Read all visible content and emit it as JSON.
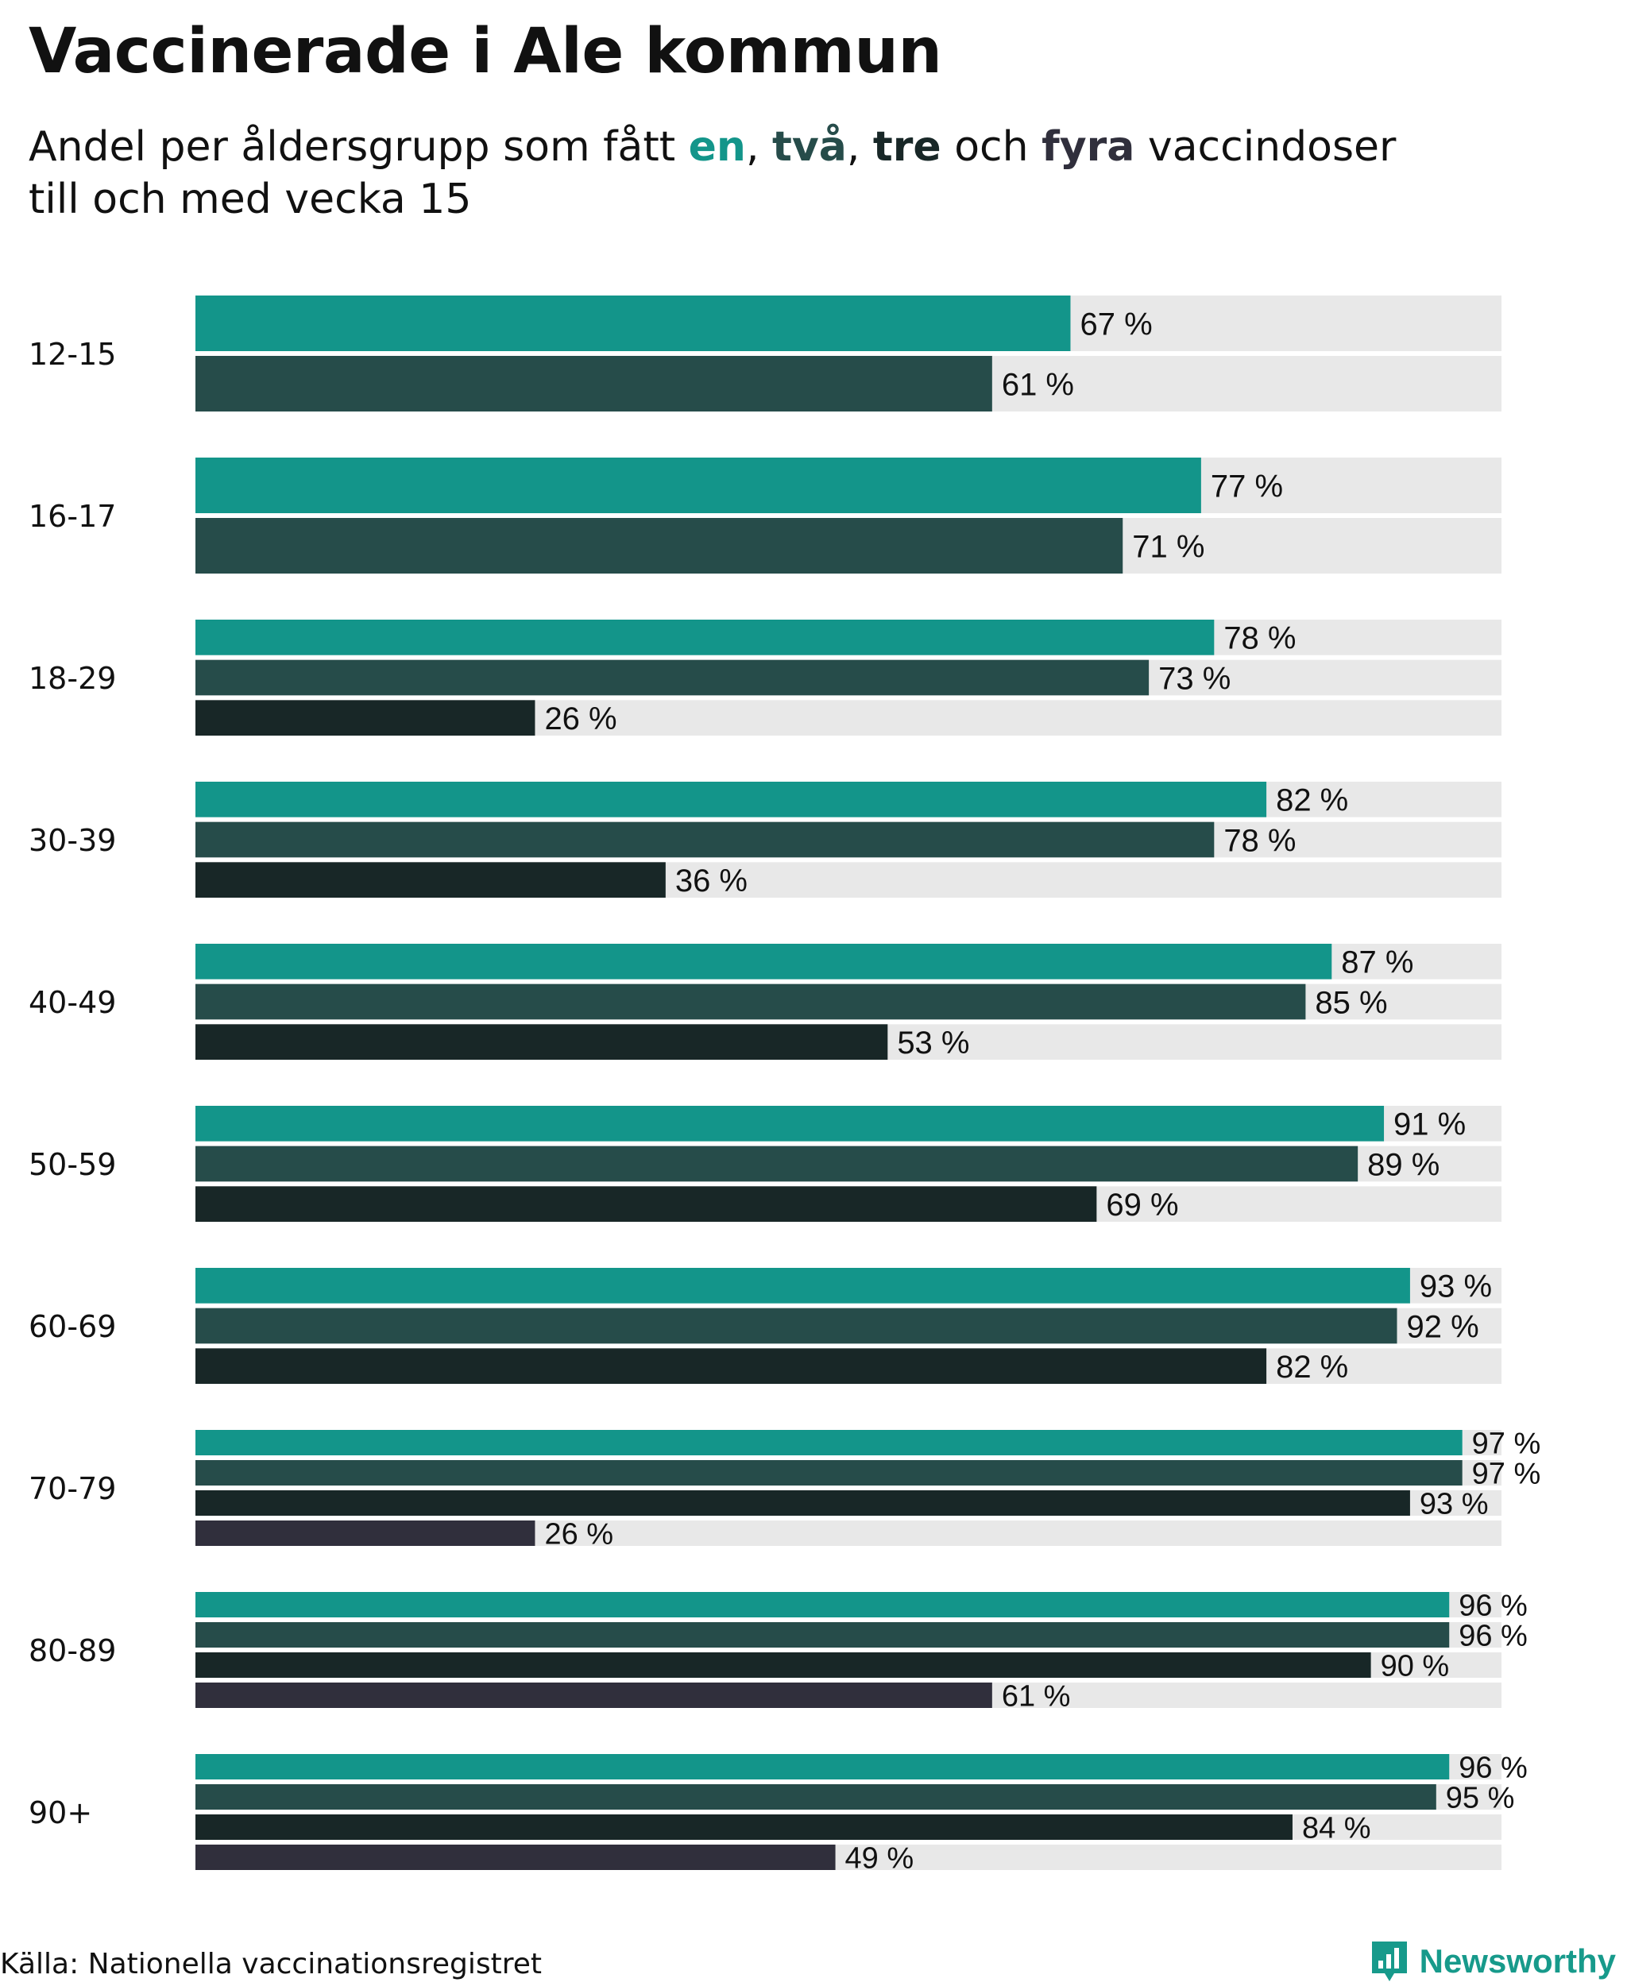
{
  "title": "Vaccinerade i Ale kommun",
  "subtitle": {
    "prefix": "Andel per åldersgrupp som fått ",
    "w1": "en",
    "sep1": ", ",
    "w2": "två",
    "sep2": ", ",
    "w3": "tre",
    "sep3": " och ",
    "w4": "fyra",
    "suffix": " vaccindoser",
    "line2": "till och med vecka 15"
  },
  "colors": {
    "dose1": "#13958a",
    "dose2": "#264c4a",
    "dose3": "#182727",
    "dose4": "#302f3c",
    "track": "#e8e8e8"
  },
  "chart_data": {
    "type": "bar",
    "orientation": "horizontal",
    "title": "Vaccinerade i Ale kommun",
    "unit": "%",
    "xlim": [
      0,
      100
    ],
    "series_names": [
      "en dos",
      "två doser",
      "tre doser",
      "fyra doser"
    ],
    "groups": [
      {
        "label": "12-15",
        "values": [
          67,
          61
        ]
      },
      {
        "label": "16-17",
        "values": [
          77,
          71
        ]
      },
      {
        "label": "18-29",
        "values": [
          78,
          73,
          26
        ]
      },
      {
        "label": "30-39",
        "values": [
          82,
          78,
          36
        ]
      },
      {
        "label": "40-49",
        "values": [
          87,
          85,
          53
        ]
      },
      {
        "label": "50-59",
        "values": [
          91,
          89,
          69
        ]
      },
      {
        "label": "60-69",
        "values": [
          93,
          92,
          82
        ]
      },
      {
        "label": "70-79",
        "values": [
          97,
          97,
          93,
          26
        ]
      },
      {
        "label": "80-89",
        "values": [
          96,
          96,
          90,
          61
        ]
      },
      {
        "label": "90+",
        "values": [
          96,
          95,
          84,
          49
        ]
      }
    ]
  },
  "footer": {
    "source": "Källa: Nationella vaccinationsregistret",
    "brand": "Newsworthy",
    "brand_icon": "newsworthy-logo-icon"
  }
}
